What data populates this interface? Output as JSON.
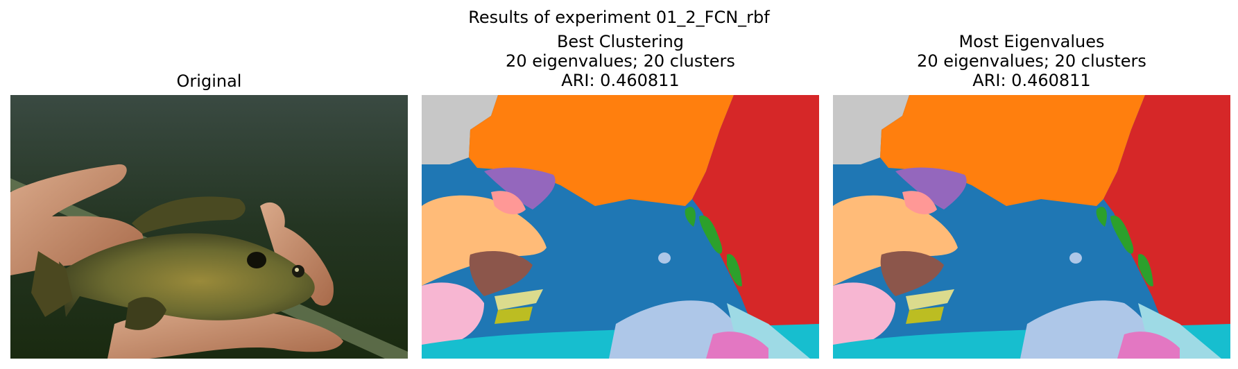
{
  "figure": {
    "suptitle": "Results of experiment 01_2_FCN_rbf"
  },
  "panels": [
    {
      "title_lines": [
        "Original"
      ],
      "content": "photo of a fish held in two hands"
    },
    {
      "title_lines": [
        "Best Clustering",
        "20 eigenvalues; 20 clusters",
        "ARI: 0.460811"
      ],
      "content": "segmentation map"
    },
    {
      "title_lines": [
        "Most Eigenvalues",
        "20 eigenvalues; 20 clusters",
        "ARI: 0.460811"
      ],
      "content": "segmentation map"
    }
  ],
  "segment_colors": {
    "orange": "#ff7f0e",
    "red": "#d62728",
    "blue": "#1f77b4",
    "green": "#2ca02c",
    "purple": "#9467bd",
    "brown": "#8c564b",
    "pink": "#e377c2",
    "gray": "#c7c7c7",
    "peach": "#ffbb78",
    "light_pink": "#ff9896",
    "light_blue": "#aec7e8",
    "cyan": "#17becf",
    "light_cyan": "#9edae5",
    "olive": "#bcbd22",
    "pale_yellow": "#dbdb8d",
    "pale_pink": "#f7b6d2"
  }
}
